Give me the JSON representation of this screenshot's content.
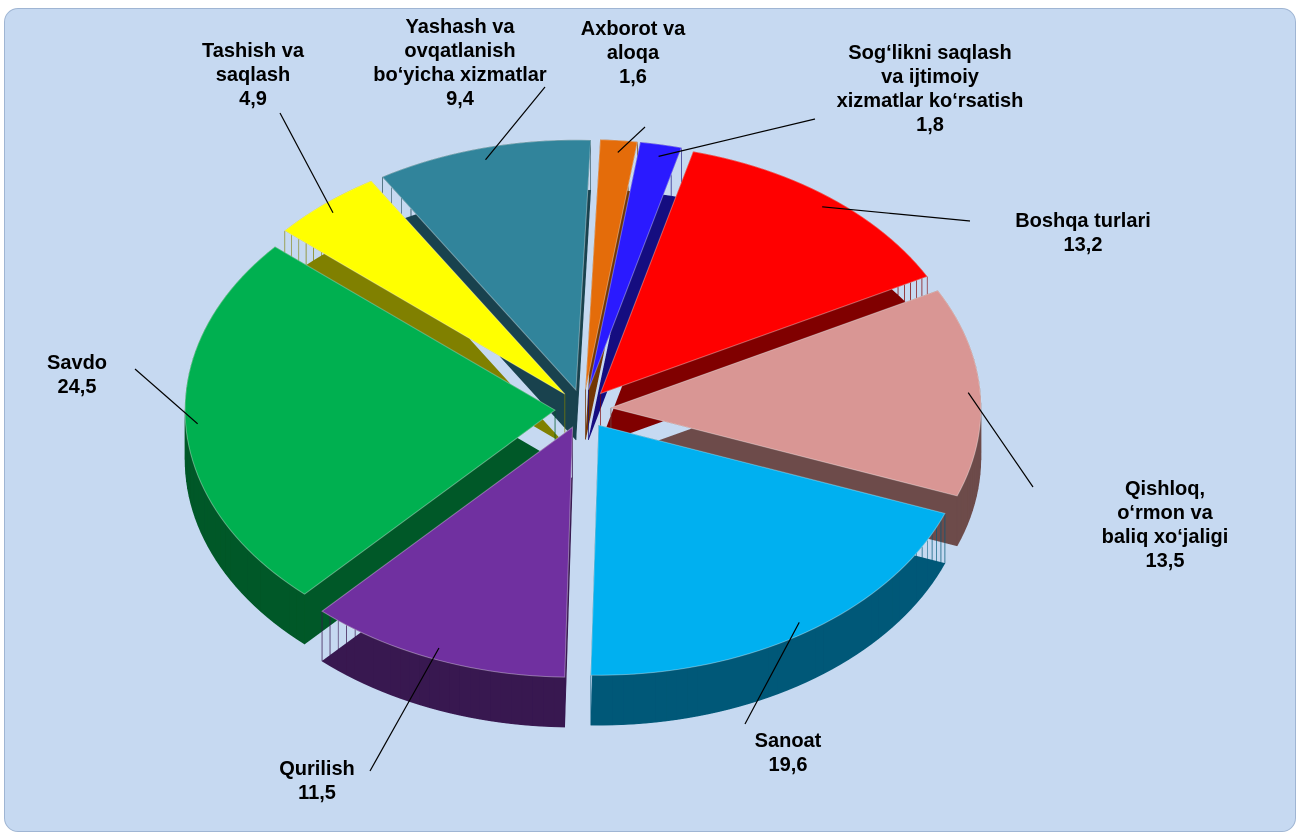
{
  "chart_data": {
    "type": "pie",
    "categories": [
      "Axborot va\naloqa",
      "Sog‘likni saqlash\nva ijtimoiy\nxizmatlar ko‘rsatish",
      "Boshqa turlari",
      "Qishloq, o‘rmon va\nbaliq xo‘jaligi",
      "Sanoat",
      "Qurilish",
      "Savdo",
      "Tashish va\nsaqlash",
      "Yashash va\novqatlanish\nbo‘yicha xizmatlar"
    ],
    "values": [
      1.6,
      1.8,
      13.2,
      13.5,
      19.6,
      11.5,
      24.5,
      4.9,
      9.4
    ],
    "value_labels": [
      "1,6",
      "1,8",
      "13,2",
      "13,5",
      "19,6",
      "11,5",
      "24,5",
      "4,9",
      "9,4"
    ],
    "colors": [
      "#e46c0a",
      "#2a1aff",
      "#ff0000",
      "#d99694",
      "#00b0f0",
      "#7030a0",
      "#00b050",
      "#ffff00",
      "#31849b"
    ]
  }
}
